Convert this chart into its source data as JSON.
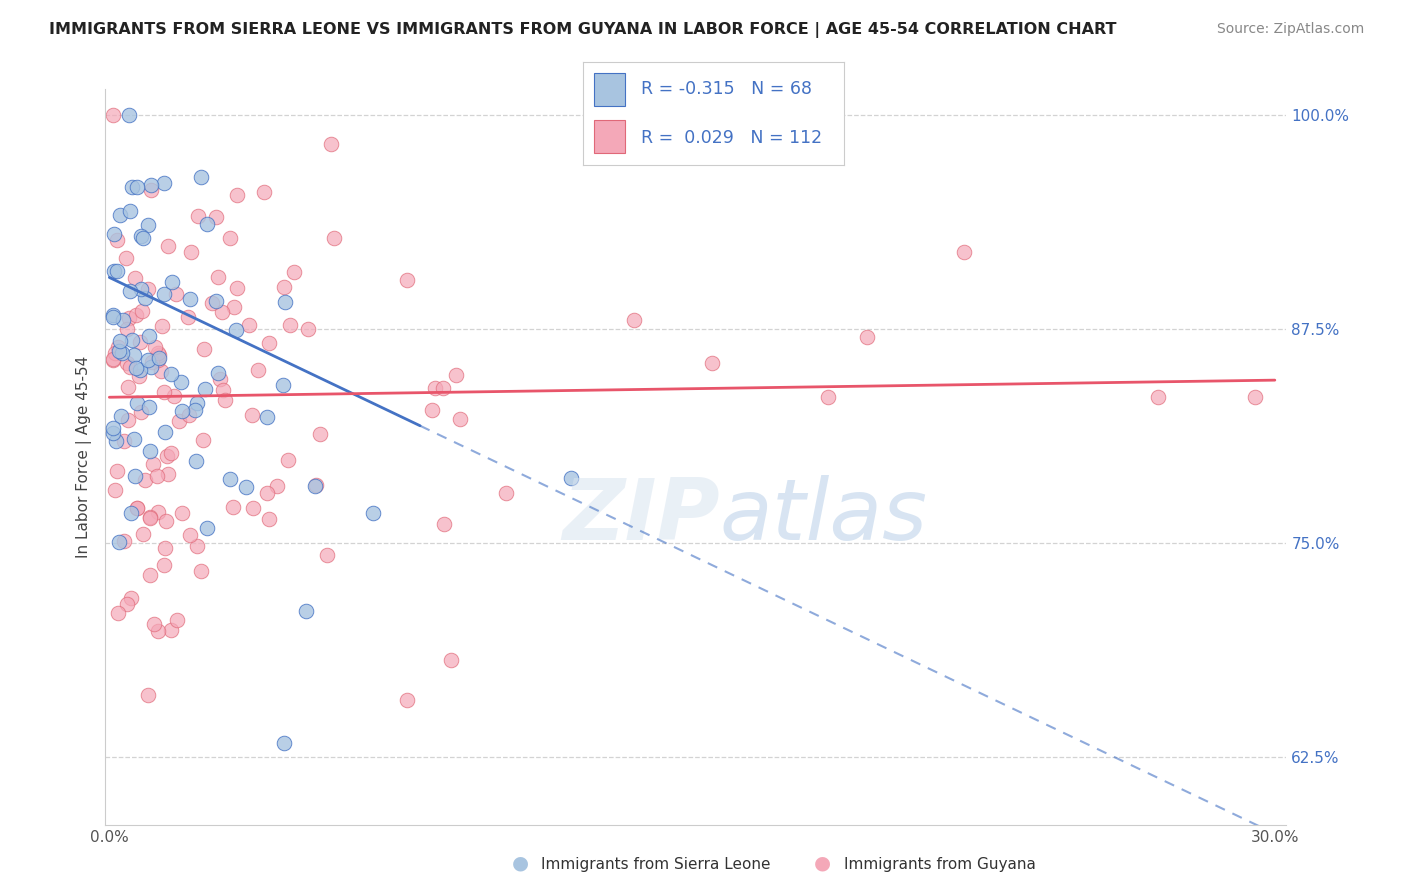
{
  "title": "IMMIGRANTS FROM SIERRA LEONE VS IMMIGRANTS FROM GUYANA IN LABOR FORCE | AGE 45-54 CORRELATION CHART",
  "source": "Source: ZipAtlas.com",
  "ylabel": "In Labor Force | Age 45-54",
  "legend_label_1": "Immigrants from Sierra Leone",
  "legend_label_2": "Immigrants from Guyana",
  "r1": -0.315,
  "n1": 68,
  "r2": 0.029,
  "n2": 112,
  "xmin": 0.0,
  "xmax": 0.3,
  "ymin": 0.585,
  "ymax": 1.015,
  "yticks": [
    0.625,
    0.75,
    0.875,
    1.0
  ],
  "ytick_labels": [
    "62.5%",
    "75.0%",
    "87.5%",
    "100.0%"
  ],
  "xticks": [
    0.0,
    0.05,
    0.1,
    0.15,
    0.2,
    0.25,
    0.3
  ],
  "xtick_labels": [
    "0.0%",
    "",
    "",
    "",
    "",
    "",
    "30.0%"
  ],
  "color_sl": "#a8c4e0",
  "color_gy": "#f4a8b8",
  "edge_color_sl": "#4472c4",
  "edge_color_gy": "#e06878",
  "line_color_sl": "#4472c4",
  "line_color_gy": "#e8556a",
  "background_color": "#ffffff",
  "sl_seed": 77,
  "gy_seed": 33
}
